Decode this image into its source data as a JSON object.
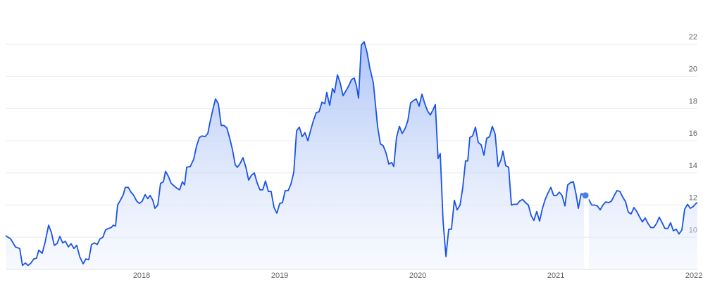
{
  "chart_data": {
    "type": "line",
    "x": [
      2017.015,
      2017.051,
      2017.086,
      2017.117,
      2017.137,
      2017.158,
      2017.178,
      2017.198,
      2017.219,
      2017.239,
      2017.255,
      2017.28,
      2017.301,
      2017.326,
      2017.346,
      2017.367,
      2017.387,
      2017.408,
      2017.428,
      2017.448,
      2017.469,
      2017.489,
      2017.51,
      2017.53,
      2017.551,
      2017.576,
      2017.596,
      2017.617,
      2017.637,
      2017.658,
      2017.678,
      2017.698,
      2017.719,
      2017.739,
      2017.76,
      2017.78,
      2017.795,
      2017.811,
      2017.826,
      2017.846,
      2017.867,
      2017.882,
      2017.903,
      2017.923,
      2017.943,
      2017.964,
      2017.984,
      2018.005,
      2018.025,
      2018.045,
      2018.061,
      2018.081,
      2018.096,
      2018.117,
      2018.137,
      2018.158,
      2018.173,
      2018.193,
      2018.214,
      2018.234,
      2018.255,
      2018.275,
      2018.295,
      2018.311,
      2018.326,
      2018.352,
      2018.377,
      2018.397,
      2018.418,
      2018.438,
      2018.459,
      2018.479,
      2018.494,
      2018.515,
      2018.535,
      2018.556,
      2018.576,
      2018.596,
      2018.617,
      2018.637,
      2018.658,
      2018.678,
      2018.693,
      2018.714,
      2018.734,
      2018.755,
      2018.775,
      2018.795,
      2018.816,
      2018.836,
      2018.857,
      2018.877,
      2018.897,
      2018.918,
      2018.938,
      2018.959,
      2018.979,
      2019.0,
      2019.02,
      2019.04,
      2019.061,
      2019.081,
      2019.102,
      2019.122,
      2019.142,
      2019.163,
      2019.183,
      2019.204,
      2019.224,
      2019.244,
      2019.265,
      2019.285,
      2019.306,
      2019.326,
      2019.341,
      2019.362,
      2019.382,
      2019.397,
      2019.418,
      2019.438,
      2019.459,
      2019.479,
      2019.499,
      2019.52,
      2019.54,
      2019.556,
      2019.571,
      2019.591,
      2019.612,
      2019.632,
      2019.653,
      2019.678,
      2019.688,
      2019.709,
      2019.729,
      2019.749,
      2019.77,
      2019.79,
      2019.811,
      2019.826,
      2019.846,
      2019.867,
      2019.887,
      2019.908,
      2019.928,
      2019.948,
      2019.969,
      2019.989,
      2020.01,
      2020.03,
      2020.051,
      2020.071,
      2020.091,
      2020.112,
      2020.127,
      2020.147,
      2020.163,
      2020.183,
      2020.204,
      2020.224,
      2020.244,
      2020.265,
      2020.285,
      2020.306,
      2020.326,
      2020.346,
      2020.362,
      2020.377,
      2020.397,
      2020.418,
      2020.438,
      2020.459,
      2020.479,
      2020.499,
      2020.52,
      2020.54,
      2020.561,
      2020.581,
      2020.602,
      2020.617,
      2020.637,
      2020.658,
      2020.678,
      2020.698,
      2020.719,
      2020.739,
      2020.76,
      2020.78,
      2020.801,
      2020.821,
      2020.841,
      2020.862,
      2020.882,
      2020.903,
      2020.923,
      2020.943,
      2020.964,
      2020.984,
      2021.005,
      2021.025,
      2021.045,
      2021.066,
      2021.086,
      2021.107,
      2021.127,
      2021.147,
      2021.163,
      2021.183,
      2021.204,
      2021.22,
      2021.239,
      2021.26,
      2021.28,
      2021.3,
      2021.321,
      2021.341,
      2021.362,
      2021.382,
      2021.403,
      2021.423,
      2021.443,
      2021.464,
      2021.484,
      2021.505,
      2021.525,
      2021.545,
      2021.566,
      2021.586,
      2021.607,
      2021.627,
      2021.647,
      2021.668,
      2021.688,
      2021.709,
      2021.729,
      2021.749,
      2021.77,
      2021.79,
      2021.811,
      2021.831,
      2021.851,
      2021.872,
      2021.892,
      2021.913,
      2021.933,
      2021.954,
      2021.974,
      2021.994,
      2022.015,
      2022.025
    ],
    "series": [
      {
        "color": "#1a53e6",
        "values": [
          10.1,
          9.9,
          9.4,
          9.3,
          8.25,
          8.4,
          8.25,
          8.4,
          8.65,
          8.7,
          9.2,
          9.0,
          9.7,
          10.75,
          10.3,
          9.5,
          9.6,
          10.05,
          9.65,
          9.75,
          9.4,
          9.6,
          9.3,
          9.5,
          8.8,
          8.35,
          8.65,
          8.6,
          9.55,
          9.65,
          9.55,
          9.9,
          10.0,
          10.45,
          10.55,
          10.6,
          10.75,
          10.7,
          12.0,
          12.3,
          12.65,
          13.1,
          13.1,
          12.8,
          12.6,
          12.25,
          12.1,
          12.25,
          12.65,
          12.4,
          12.6,
          12.3,
          11.8,
          12.0,
          13.35,
          13.45,
          14.1,
          13.8,
          13.35,
          13.2,
          13.05,
          12.95,
          13.45,
          13.25,
          14.35,
          14.4,
          14.85,
          15.65,
          16.2,
          16.3,
          16.25,
          16.45,
          17.1,
          17.9,
          18.6,
          18.3,
          16.95,
          16.95,
          16.8,
          16.2,
          15.45,
          14.5,
          14.35,
          14.6,
          14.95,
          14.35,
          13.55,
          13.85,
          14.0,
          13.4,
          12.95,
          12.95,
          13.5,
          12.85,
          12.85,
          11.85,
          11.5,
          12.1,
          12.15,
          12.9,
          12.9,
          13.3,
          14.05,
          16.6,
          16.85,
          16.25,
          16.5,
          16.0,
          16.65,
          17.25,
          17.75,
          17.8,
          18.4,
          18.3,
          19.0,
          18.2,
          19.25,
          19.0,
          20.1,
          19.6,
          18.8,
          19.1,
          19.4,
          19.8,
          19.9,
          19.4,
          18.65,
          21.95,
          22.15,
          21.5,
          20.5,
          19.6,
          18.75,
          16.9,
          15.8,
          15.7,
          15.25,
          14.55,
          14.65,
          14.4,
          16.2,
          16.9,
          16.45,
          16.75,
          17.25,
          18.35,
          18.5,
          18.6,
          18.15,
          18.9,
          18.3,
          17.85,
          17.6,
          17.95,
          18.25,
          14.9,
          15.2,
          11.0,
          8.8,
          10.5,
          10.5,
          12.3,
          11.7,
          12.0,
          13.1,
          14.75,
          14.75,
          16.2,
          16.3,
          16.85,
          15.9,
          15.75,
          15.1,
          16.15,
          16.25,
          16.9,
          16.4,
          14.4,
          14.8,
          15.35,
          14.45,
          14.35,
          12.0,
          12.05,
          12.05,
          12.25,
          12.35,
          12.15,
          12.0,
          11.35,
          11.05,
          11.6,
          11.0,
          11.8,
          12.35,
          12.75,
          13.1,
          12.6,
          12.6,
          12.8,
          12.6,
          11.95,
          13.25,
          13.4,
          13.45,
          12.65,
          11.8,
          12.7,
          12.65,
          null,
          12.35,
          12.0,
          12.0,
          11.95,
          11.7,
          12.0,
          12.2,
          12.15,
          12.25,
          12.6,
          12.9,
          12.85,
          12.5,
          12.2,
          11.55,
          11.45,
          11.85,
          11.6,
          11.25,
          10.95,
          11.2,
          10.85,
          10.6,
          10.6,
          10.85,
          11.25,
          10.9,
          10.55,
          10.55,
          10.9,
          10.4,
          10.5,
          10.2,
          10.45,
          11.75,
          12.05,
          11.8,
          11.9,
          12.1,
          12.15
        ]
      }
    ],
    "marker": {
      "x": 2021.214,
      "y": 12.6,
      "color": "#4a7ef0"
    },
    "xlim": [
      2017.015,
      2022.025
    ],
    "xticks": [
      2018,
      2019,
      2020,
      2021,
      2022
    ],
    "ylim": [
      8,
      23
    ],
    "yticks": [
      10,
      12,
      14,
      16,
      18,
      20,
      22
    ],
    "grid": true
  }
}
